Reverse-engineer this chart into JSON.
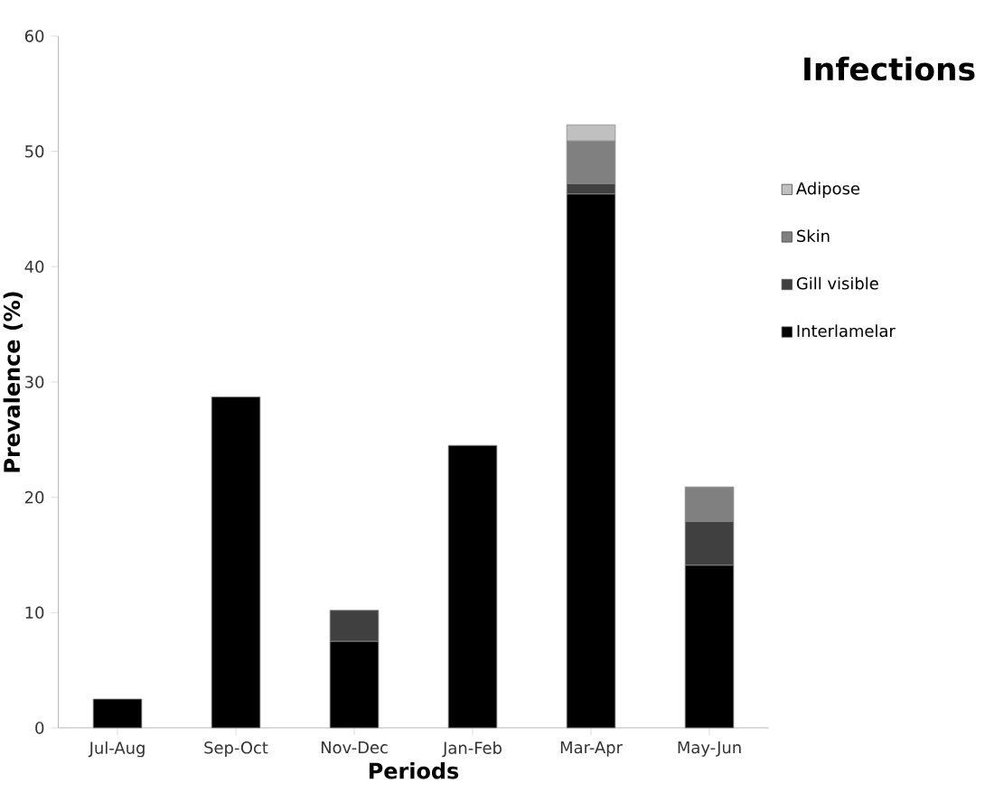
{
  "chart_data": {
    "type": "bar",
    "stacked": true,
    "legend_title": "Infections",
    "xlabel": "Periods",
    "ylabel": "Prevalence (%)",
    "categories": [
      "Jul-Aug",
      "Sep-Oct",
      "Nov-Dec",
      "Jan-Feb",
      "Mar-Apr",
      "May-Jun"
    ],
    "series": [
      {
        "name": "Interlamelar",
        "color": "#000000",
        "values": [
          2.5,
          28.7,
          7.5,
          24.5,
          46.3,
          14.1
        ]
      },
      {
        "name": "Gill visible",
        "color": "#404040",
        "values": [
          0,
          0,
          2.7,
          0,
          0.9,
          3.8
        ]
      },
      {
        "name": "Skin",
        "color": "#808080",
        "values": [
          0,
          0,
          0,
          0,
          3.7,
          3.0
        ]
      },
      {
        "name": "Adipose",
        "color": "#c0c0c0",
        "values": [
          0,
          0,
          0,
          0,
          1.4,
          0
        ]
      }
    ],
    "ylim": [
      0,
      60
    ],
    "yticks": [
      0,
      10,
      20,
      30,
      40,
      50,
      60
    ],
    "grid": false,
    "legend": "right"
  }
}
